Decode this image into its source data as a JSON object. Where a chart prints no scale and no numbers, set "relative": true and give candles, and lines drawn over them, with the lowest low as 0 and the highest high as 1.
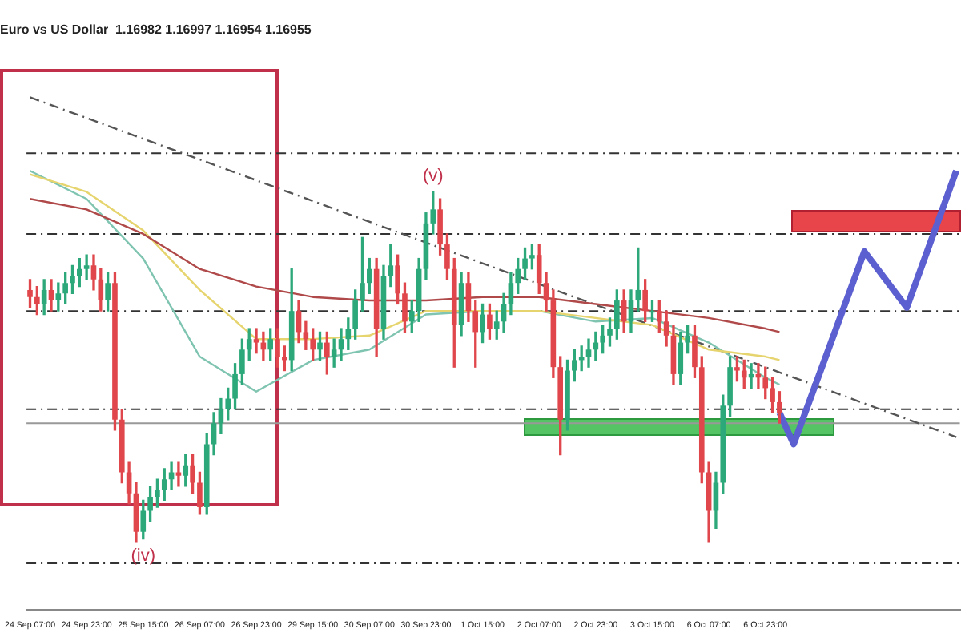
{
  "chart_data": {
    "type": "candlestick",
    "title": "Euro vs US Dollar  1.16982 1.16997 1.16954 1.16955",
    "relative": true,
    "legend": false,
    "grid": false,
    "colors": [
      "#e0474c",
      "#e0474c",
      "#2ca87a",
      "#e0474c",
      "#2ca87a",
      "#2ca87a",
      "#2ca87a",
      "#2ca87a",
      "#2ca87a",
      "#e0474c",
      "#e0474c",
      "#2ca87a",
      "#e0474c",
      "#e0474c",
      "#e0474c",
      "#e0474c",
      "#2ca87a",
      "#2ca87a",
      "#2ca87a",
      "#2ca87a",
      "#2ca87a",
      "#e0474c",
      "#2ca87a",
      "#e0474c",
      "#e0474c",
      "#2ca87a",
      "#2ca87a",
      "#2ca87a",
      "#2ca87a",
      "#2ca87a",
      "#2ca87a",
      "#2ca87a",
      "#e0474c",
      "#e0474c",
      "#2ca87a",
      "#e0474c",
      "#e0474c",
      "#2ca87a",
      "#e0474c",
      "#e0474c",
      "#e0474c",
      "#2ca87a",
      "#e0474c",
      "#2ca87a",
      "#2ca87a",
      "#2ca87a",
      "#2ca87a",
      "#2ca87a",
      "#2ca87a",
      "#e0474c",
      "#2ca87a",
      "#2ca87a",
      "#e0474c",
      "#e0474c",
      "#2ca87a",
      "#2ca87a",
      "#2ca87a",
      "#2ca87a",
      "#e0474c",
      "#e0474c",
      "#e0474c",
      "#2ca87a",
      "#e0474c",
      "#e0474c",
      "#2ca87a",
      "#e0474c",
      "#2ca87a",
      "#2ca87a",
      "#2ca87a",
      "#2ca87a",
      "#2ca87a",
      "#2ca87a",
      "#e0474c",
      "#e0474c",
      "#e0474c",
      "#e0474c",
      "#2ca87a",
      "#2ca87a",
      "#2ca87a",
      "#2ca87a",
      "#2ca87a",
      "#2ca87a",
      "#2ca87a",
      "#2ca87a",
      "#e0474c",
      "#2ca87a",
      "#2ca87a",
      "#e0474c",
      "#2ca87a",
      "#e0474c",
      "#e0474c",
      "#e0474c",
      "#2ca87a",
      "#2ca87a",
      "#e0474c",
      "#e0474c",
      "#e0474c",
      "#2ca87a",
      "#2ca87a",
      "#2ca87a",
      "#e0474c",
      "#e0474c",
      "#2ca87a",
      "#e0474c",
      "#e0474c",
      "#e0474c",
      "#e0474c",
      null,
      null,
      null,
      null,
      null,
      null,
      null,
      null,
      null,
      null,
      null,
      null,
      null,
      null,
      null,
      null,
      null,
      null,
      null,
      null,
      null,
      null,
      null,
      null,
      null
    ],
    "categories": [
      "24 Sep 07:00",
      null,
      null,
      null,
      null,
      null,
      null,
      null,
      "24 Sep 23:00",
      null,
      null,
      null,
      null,
      null,
      null,
      null,
      "25 Sep 15:00",
      null,
      null,
      null,
      null,
      null,
      null,
      null,
      "26 Sep 07:00",
      null,
      null,
      null,
      null,
      null,
      null,
      null,
      "26 Sep 23:00",
      null,
      null,
      null,
      null,
      null,
      null,
      null,
      "29 Sep 15:00",
      null,
      null,
      null,
      null,
      null,
      null,
      null,
      "30 Sep 07:00",
      null,
      null,
      null,
      null,
      null,
      null,
      null,
      "30 Sep 23:00",
      null,
      null,
      null,
      null,
      null,
      null,
      null,
      "1 Oct 15:00",
      null,
      null,
      null,
      null,
      null,
      null,
      null,
      "2 Oct 07:00",
      null,
      null,
      null,
      null,
      null,
      null,
      null,
      "2 Oct 23:00",
      null,
      null,
      null,
      null,
      null,
      null,
      null,
      "3 Oct 15:00",
      null,
      null,
      null,
      null,
      null,
      null,
      null,
      "6 Oct 07:00",
      null,
      null,
      null,
      null,
      null,
      null,
      null,
      "6 Oct 23:00",
      null,
      null,
      null,
      null,
      null,
      null,
      null,
      null,
      null,
      null,
      null,
      null,
      null,
      null,
      null,
      null,
      null,
      null,
      null,
      null,
      null,
      null,
      null,
      null,
      null,
      null,
      null
    ],
    "ohlc": [
      [
        0.72,
        0.75,
        0.67,
        0.7
      ],
      [
        0.7,
        0.73,
        0.65,
        0.68
      ],
      [
        0.68,
        0.75,
        0.65,
        0.72
      ],
      [
        0.72,
        0.75,
        0.66,
        0.69
      ],
      [
        0.69,
        0.74,
        0.66,
        0.71
      ],
      [
        0.71,
        0.77,
        0.68,
        0.74
      ],
      [
        0.74,
        0.79,
        0.71,
        0.76
      ],
      [
        0.76,
        0.81,
        0.73,
        0.78
      ],
      [
        0.78,
        0.82,
        0.75,
        0.79
      ],
      [
        0.79,
        0.82,
        0.72,
        0.75
      ],
      [
        0.75,
        0.78,
        0.66,
        0.69
      ],
      [
        0.69,
        0.77,
        0.66,
        0.74
      ],
      [
        0.74,
        0.77,
        0.32,
        0.35
      ],
      [
        0.35,
        0.38,
        0.17,
        0.2
      ],
      [
        0.2,
        0.23,
        0.11,
        0.14
      ],
      [
        0.14,
        0.17,
        0,
        0.03
      ],
      [
        0.03,
        0.12,
        0.01,
        0.09
      ],
      [
        0.09,
        0.16,
        0.06,
        0.13
      ],
      [
        0.13,
        0.18,
        0.1,
        0.15
      ],
      [
        0.15,
        0.21,
        0.12,
        0.18
      ],
      [
        0.18,
        0.23,
        0.15,
        0.2
      ],
      [
        0.2,
        0.23,
        0.16,
        0.19
      ],
      [
        0.19,
        0.25,
        0.16,
        0.22
      ],
      [
        0.22,
        0.25,
        0.14,
        0.17
      ],
      [
        0.17,
        0.2,
        0.08,
        0.1
      ],
      [
        0.1,
        0.31,
        0.08,
        0.28
      ],
      [
        0.28,
        0.37,
        0.25,
        0.34
      ],
      [
        0.34,
        0.41,
        0.31,
        0.38
      ],
      [
        0.38,
        0.44,
        0.35,
        0.41
      ],
      [
        0.41,
        0.51,
        0.38,
        0.48
      ],
      [
        0.48,
        0.58,
        0.45,
        0.55
      ],
      [
        0.55,
        0.61,
        0.52,
        0.58
      ],
      [
        0.58,
        0.61,
        0.54,
        0.57
      ],
      [
        0.57,
        0.6,
        0.52,
        0.55
      ],
      [
        0.55,
        0.61,
        0.52,
        0.58
      ],
      [
        0.58,
        0.61,
        0.5,
        0.53
      ],
      [
        0.53,
        0.56,
        0.49,
        0.52
      ],
      [
        0.52,
        0.78,
        0.49,
        0.66
      ],
      [
        0.66,
        0.69,
        0.57,
        0.6
      ],
      [
        0.6,
        0.63,
        0.55,
        0.58
      ],
      [
        0.58,
        0.61,
        0.52,
        0.55
      ],
      [
        0.55,
        0.6,
        0.52,
        0.57
      ],
      [
        0.57,
        0.6,
        0.48,
        0.53
      ],
      [
        0.53,
        0.58,
        0.5,
        0.55
      ],
      [
        0.55,
        0.61,
        0.52,
        0.58
      ],
      [
        0.58,
        0.64,
        0.55,
        0.61
      ],
      [
        0.61,
        0.72,
        0.58,
        0.69
      ],
      [
        0.69,
        0.87,
        0.66,
        0.74
      ],
      [
        0.74,
        0.81,
        0.71,
        0.78
      ],
      [
        0.78,
        0.81,
        0.53,
        0.61
      ],
      [
        0.61,
        0.79,
        0.58,
        0.76
      ],
      [
        0.76,
        0.85,
        0.73,
        0.79
      ],
      [
        0.79,
        0.82,
        0.68,
        0.71
      ],
      [
        0.71,
        0.74,
        0.6,
        0.63
      ],
      [
        0.63,
        0.69,
        0.6,
        0.66
      ],
      [
        0.66,
        0.81,
        0.63,
        0.78
      ],
      [
        0.78,
        0.94,
        0.75,
        0.91
      ],
      [
        0.91,
        1,
        0.88,
        0.95
      ],
      [
        0.95,
        0.98,
        0.82,
        0.85
      ],
      [
        0.85,
        0.88,
        0.75,
        0.78
      ],
      [
        0.78,
        0.81,
        0.5,
        0.62
      ],
      [
        0.62,
        0.77,
        0.59,
        0.74
      ],
      [
        0.74,
        0.77,
        0.63,
        0.66
      ],
      [
        0.66,
        0.69,
        0.5,
        0.6
      ],
      [
        0.6,
        0.68,
        0.57,
        0.65
      ],
      [
        0.65,
        0.68,
        0.58,
        0.61
      ],
      [
        0.61,
        0.66,
        0.58,
        0.63
      ],
      [
        0.63,
        0.71,
        0.6,
        0.68
      ],
      [
        0.68,
        0.77,
        0.65,
        0.74
      ],
      [
        0.74,
        0.81,
        0.71,
        0.78
      ],
      [
        0.78,
        0.84,
        0.75,
        0.81
      ],
      [
        0.81,
        0.85,
        0.78,
        0.82
      ],
      [
        0.82,
        0.85,
        0.71,
        0.74
      ],
      [
        0.74,
        0.77,
        0.66,
        0.69
      ],
      [
        0.69,
        0.72,
        0.47,
        0.5
      ],
      [
        0.5,
        0.53,
        0.25,
        0.35
      ],
      [
        0.35,
        0.52,
        0.32,
        0.49
      ],
      [
        0.49,
        0.55,
        0.46,
        0.52
      ],
      [
        0.52,
        0.56,
        0.49,
        0.53
      ],
      [
        0.53,
        0.58,
        0.5,
        0.55
      ],
      [
        0.55,
        0.6,
        0.52,
        0.57
      ],
      [
        0.57,
        0.62,
        0.54,
        0.59
      ],
      [
        0.59,
        0.64,
        0.56,
        0.61
      ],
      [
        0.61,
        0.72,
        0.58,
        0.69
      ],
      [
        0.69,
        0.72,
        0.6,
        0.63
      ],
      [
        0.63,
        0.72,
        0.6,
        0.69
      ],
      [
        0.69,
        0.84,
        0.66,
        0.72
      ],
      [
        0.72,
        0.75,
        0.63,
        0.66
      ],
      [
        0.66,
        0.69,
        0.63,
        0.66
      ],
      [
        0.66,
        0.69,
        0.6,
        0.63
      ],
      [
        0.63,
        0.66,
        0.56,
        0.59
      ],
      [
        0.59,
        0.62,
        0.45,
        0.48
      ],
      [
        0.48,
        0.6,
        0.45,
        0.57
      ],
      [
        0.57,
        0.62,
        0.54,
        0.59
      ],
      [
        0.59,
        0.62,
        0.47,
        0.5
      ],
      [
        0.5,
        0.53,
        0.17,
        0.2
      ],
      [
        0.2,
        0.23,
        0,
        0.09
      ],
      [
        0.09,
        0.2,
        0.04,
        0.17
      ],
      [
        0.17,
        0.42,
        0.14,
        0.39
      ],
      [
        0.39,
        0.53,
        0.36,
        0.5
      ],
      [
        0.5,
        0.53,
        0.46,
        0.49
      ],
      [
        0.49,
        0.52,
        0.44,
        0.47
      ],
      [
        0.47,
        0.51,
        0.44,
        0.48
      ],
      [
        0.48,
        0.51,
        0.44,
        0.47
      ],
      [
        0.47,
        0.5,
        0.41,
        0.44
      ],
      [
        0.44,
        0.47,
        0.37,
        0.4
      ],
      [
        0.4,
        0.43,
        0.34,
        0.37
      ],
      null,
      null,
      null,
      null,
      null,
      null,
      null,
      null,
      null,
      null,
      null,
      null,
      null,
      null,
      null,
      null,
      null,
      null,
      null,
      null,
      null,
      null,
      null,
      null,
      null
    ],
    "series": [
      {
        "type": "line",
        "color": "#b04a4a",
        "values": [
          0.98,
          null,
          null,
          null,
          null,
          null,
          null,
          null,
          0.95,
          null,
          null,
          null,
          null,
          null,
          null,
          null,
          0.88,
          null,
          null,
          null,
          null,
          null,
          null,
          null,
          0.78,
          null,
          null,
          null,
          null,
          null,
          null,
          null,
          0.73,
          null,
          null,
          null,
          null,
          null,
          null,
          null,
          0.7,
          null,
          null,
          null,
          null,
          null,
          null,
          null,
          0.69,
          null,
          null,
          null,
          null,
          null,
          null,
          null,
          0.69,
          null,
          null,
          null,
          null,
          null,
          null,
          null,
          0.7,
          null,
          null,
          null,
          null,
          null,
          null,
          null,
          0.7,
          null,
          null,
          null,
          null,
          null,
          null,
          null,
          0.68,
          null,
          null,
          null,
          null,
          null,
          null,
          null,
          0.66,
          null,
          null,
          null,
          null,
          null,
          null,
          null,
          0.64,
          null,
          null,
          null,
          null,
          null,
          null,
          null,
          0.61,
          null,
          0.6,
          null,
          null,
          null,
          null,
          null,
          null,
          null,
          null,
          null,
          null,
          null,
          null,
          null,
          null,
          null,
          null,
          null,
          null,
          null,
          null,
          null,
          null,
          null,
          null,
          null
        ]
      },
      {
        "type": "line",
        "color": "#e6d46e",
        "values": [
          1.05,
          null,
          null,
          null,
          null,
          null,
          null,
          null,
          1.0,
          null,
          null,
          null,
          null,
          null,
          null,
          null,
          0.89,
          null,
          null,
          null,
          null,
          null,
          null,
          null,
          0.72,
          null,
          null,
          null,
          null,
          null,
          null,
          null,
          0.58,
          null,
          null,
          null,
          null,
          null,
          null,
          null,
          0.58,
          null,
          null,
          null,
          null,
          null,
          null,
          null,
          0.59,
          null,
          null,
          null,
          null,
          null,
          null,
          null,
          0.66,
          null,
          null,
          null,
          null,
          null,
          null,
          null,
          0.66,
          null,
          null,
          null,
          null,
          null,
          null,
          null,
          0.66,
          null,
          null,
          null,
          null,
          null,
          null,
          null,
          0.64,
          null,
          null,
          null,
          null,
          null,
          null,
          null,
          0.62,
          null,
          null,
          null,
          null,
          null,
          null,
          null,
          0.55,
          null,
          null,
          null,
          null,
          null,
          null,
          null,
          0.53,
          null,
          0.52,
          null,
          null,
          null,
          null,
          null,
          null,
          null,
          null,
          null,
          null,
          null,
          null,
          null,
          null,
          null,
          null,
          null,
          null,
          null,
          null,
          null,
          null,
          null,
          null,
          null
        ]
      },
      {
        "type": "line",
        "color": "#7fc4b0",
        "values": [
          1.06,
          null,
          null,
          null,
          null,
          null,
          null,
          null,
          0.98,
          null,
          null,
          null,
          null,
          null,
          null,
          null,
          0.81,
          null,
          null,
          null,
          null,
          null,
          null,
          null,
          0.53,
          null,
          null,
          null,
          null,
          null,
          null,
          null,
          0.43,
          null,
          null,
          null,
          null,
          null,
          null,
          null,
          0.52,
          null,
          null,
          null,
          null,
          null,
          null,
          null,
          0.55,
          null,
          null,
          null,
          null,
          null,
          null,
          null,
          0.65,
          null,
          null,
          null,
          null,
          null,
          null,
          null,
          0.66,
          null,
          null,
          null,
          null,
          null,
          null,
          null,
          0.66,
          null,
          null,
          null,
          null,
          null,
          null,
          null,
          0.63,
          null,
          null,
          null,
          null,
          null,
          null,
          null,
          0.64,
          null,
          null,
          null,
          null,
          null,
          null,
          null,
          0.57,
          null,
          null,
          null,
          null,
          null,
          null,
          null,
          0.47,
          null,
          0.45,
          null,
          null,
          null,
          null,
          null,
          null,
          null,
          null,
          null,
          null,
          null,
          null,
          null,
          null,
          null,
          null,
          null,
          null,
          null,
          null,
          null,
          null,
          null,
          null,
          null
        ]
      },
      {
        "type": "line",
        "color": "#5b5fd0",
        "values": [
          null,
          null,
          null,
          null,
          null,
          null,
          null,
          null,
          null,
          null,
          null,
          null,
          null,
          null,
          null,
          null,
          null,
          null,
          null,
          null,
          null,
          null,
          null,
          null,
          null,
          null,
          null,
          null,
          null,
          null,
          null,
          null,
          null,
          null,
          null,
          null,
          null,
          null,
          null,
          null,
          null,
          null,
          null,
          null,
          null,
          null,
          null,
          null,
          null,
          null,
          null,
          null,
          null,
          null,
          null,
          null,
          null,
          null,
          null,
          null,
          null,
          null,
          null,
          null,
          null,
          null,
          null,
          null,
          null,
          null,
          null,
          null,
          null,
          null,
          null,
          null,
          null,
          null,
          null,
          null,
          null,
          null,
          null,
          null,
          null,
          null,
          null,
          null,
          null,
          null,
          null,
          null,
          null,
          null,
          null,
          null,
          null,
          null,
          null,
          null,
          null,
          null,
          null,
          null,
          null,
          null,
          0.37,
          null,
          0.28,
          null,
          null,
          null,
          null,
          null,
          null,
          null,
          null,
          null,
          0.83,
          null,
          null,
          null,
          null,
          null,
          0.67,
          null,
          null,
          null,
          null,
          null,
          null,
          1.06
        ]
      },
      {
        "type": "line",
        "color": "#555555",
        "line_style": "dashed",
        "values": [
          1.27,
          null,
          null,
          null,
          null,
          null,
          null,
          null,
          null,
          null,
          null,
          null,
          null,
          null,
          null,
          null,
          null,
          null,
          null,
          null,
          null,
          null,
          null,
          null,
          null,
          null,
          null,
          null,
          null,
          null,
          null,
          null,
          null,
          null,
          null,
          null,
          null,
          null,
          null,
          null,
          null,
          null,
          null,
          null,
          null,
          null,
          null,
          null,
          null,
          null,
          null,
          null,
          null,
          null,
          null,
          null,
          null,
          null,
          null,
          null,
          null,
          null,
          null,
          null,
          null,
          null,
          null,
          null,
          null,
          null,
          null,
          null,
          null,
          null,
          null,
          null,
          null,
          null,
          null,
          null,
          null,
          null,
          null,
          null,
          null,
          null,
          null,
          null,
          null,
          null,
          null,
          null,
          null,
          null,
          null,
          null,
          null,
          null,
          null,
          null,
          null,
          null,
          null,
          null,
          null,
          null,
          null,
          null,
          null,
          null,
          null,
          null,
          null,
          null,
          null,
          null,
          null,
          null,
          null,
          null,
          null,
          null,
          null,
          null,
          null,
          null,
          null,
          null,
          null,
          null,
          null,
          0.3
        ]
      }
    ],
    "ref_lines": [
      {
        "axis": "y",
        "value": 1.11,
        "line_style": "dashed",
        "color": "#333333"
      },
      {
        "axis": "y",
        "value": 0.88,
        "line_style": "dashed",
        "color": "#333333"
      },
      {
        "axis": "y",
        "value": 0.66,
        "line_style": "dashed",
        "color": "#333333"
      },
      {
        "axis": "y",
        "value": 0.38,
        "line_style": "dashed",
        "color": "#333333"
      },
      {
        "axis": "y",
        "value": 0.34,
        "line_style": "solid",
        "color": "#999999"
      },
      {
        "axis": "y",
        "value": -0.06,
        "line_style": "dashed",
        "color": "#333333"
      }
    ],
    "annotations": [
      {
        "text": "(iv)",
        "x": "25 Sep 15:00",
        "y": -0.04
      },
      "(v)"
    ]
  }
}
